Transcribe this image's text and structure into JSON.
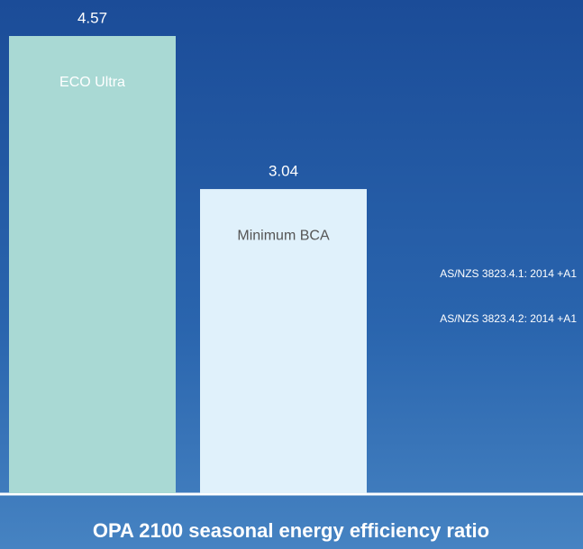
{
  "chart_data": {
    "type": "bar",
    "title": "OPA 2100 seasonal energy efficiency ratio",
    "categories": [
      "ECO Ultra",
      "Minimum BCA"
    ],
    "values": [
      4.57,
      3.04
    ],
    "colors": [
      "#a9d9d4",
      "#e0f1fb"
    ],
    "annotations": [
      "AS/NZS 3823.4.1: 2014 +A1",
      "AS/NZS 3823.4.2: 2014 +A1"
    ]
  }
}
